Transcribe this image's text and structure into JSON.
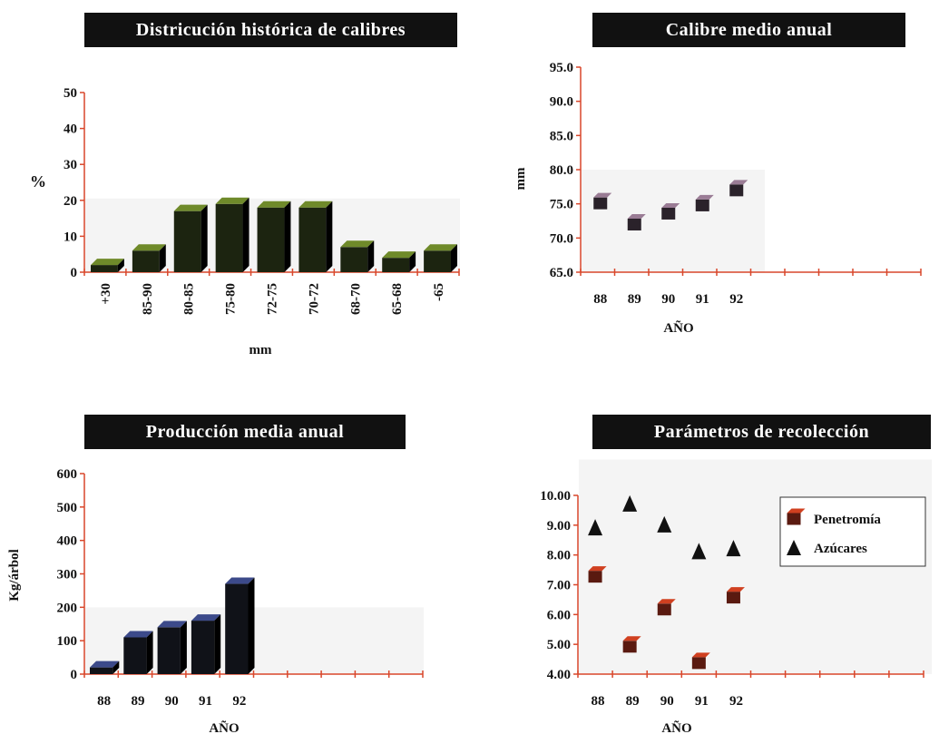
{
  "colors": {
    "axis": "#d9472b",
    "bar_green_top": "#6f8a2a",
    "bar_green_face": "#1c2410",
    "bar_navy_top": "#3c4a8a",
    "bar_navy_face": "#101218",
    "marker_mauve_top": "#9a7c95",
    "marker_mauve_face": "#2a222a",
    "penetromia_top": "#d04020",
    "penetromia_face": "#5a1a10",
    "azucares": "#111111",
    "plot_bg": "#f4f4f4"
  },
  "chart_data": [
    {
      "id": "distribucion",
      "type": "bar",
      "title": "Districución histórica de calibres",
      "xlabel": "mm",
      "ylabel": "%",
      "categories": [
        "+30",
        "85-90",
        "80-85",
        "75-80",
        "72-75",
        "70-72",
        "68-70",
        "65-68",
        "-65"
      ],
      "values": [
        2,
        6,
        17,
        19,
        18,
        18,
        7,
        4,
        6
      ],
      "ylim": [
        0,
        50
      ],
      "yticks": [
        "0",
        "10",
        "20",
        "30",
        "40",
        "50"
      ],
      "ytick_values": [
        0,
        10,
        20,
        30,
        40,
        50
      ]
    },
    {
      "id": "calibre",
      "type": "scatter",
      "title": "Calibre medio anual",
      "xlabel": "AÑO",
      "ylabel": "mm",
      "categories": [
        "88",
        "89",
        "90",
        "91",
        "92"
      ],
      "values": [
        75.2,
        72.1,
        73.7,
        74.9,
        77.1
      ],
      "ylim": [
        65,
        95
      ],
      "yticks": [
        "65.0",
        "70.0",
        "75.0",
        "80.0",
        "85.0",
        "90.0",
        "95.0"
      ],
      "ytick_values": [
        65,
        70,
        75,
        80,
        85,
        90,
        95
      ]
    },
    {
      "id": "produccion",
      "type": "bar",
      "title": "Producción media anual",
      "xlabel": "AÑO",
      "ylabel": "Kg/árbol",
      "categories": [
        "88",
        "89",
        "90",
        "91",
        "92"
      ],
      "values": [
        20,
        110,
        140,
        160,
        270
      ],
      "ylim": [
        0,
        600
      ],
      "yticks": [
        "0",
        "100",
        "200",
        "300",
        "400",
        "500",
        "600"
      ],
      "ytick_values": [
        0,
        100,
        200,
        300,
        400,
        500,
        600
      ]
    },
    {
      "id": "recoleccion",
      "type": "scatter",
      "title": "Parámetros de recolección",
      "xlabel": "AÑO",
      "ylabel": "",
      "categories": [
        "88",
        "89",
        "90",
        "91",
        "92"
      ],
      "series": [
        {
          "name": "Penetromía",
          "values": [
            7.3,
            4.95,
            6.2,
            4.4,
            6.6
          ]
        },
        {
          "name": "Azúcares",
          "values": [
            8.9,
            9.7,
            9.0,
            8.1,
            8.2
          ]
        }
      ],
      "ylim": [
        4,
        10
      ],
      "yticks": [
        "4.00",
        "5.00",
        "6.00",
        "7.00",
        "8.00",
        "9.00",
        "10.00"
      ],
      "ytick_values": [
        4,
        5,
        6,
        7,
        8,
        9,
        10
      ],
      "legend": "top-right"
    }
  ]
}
